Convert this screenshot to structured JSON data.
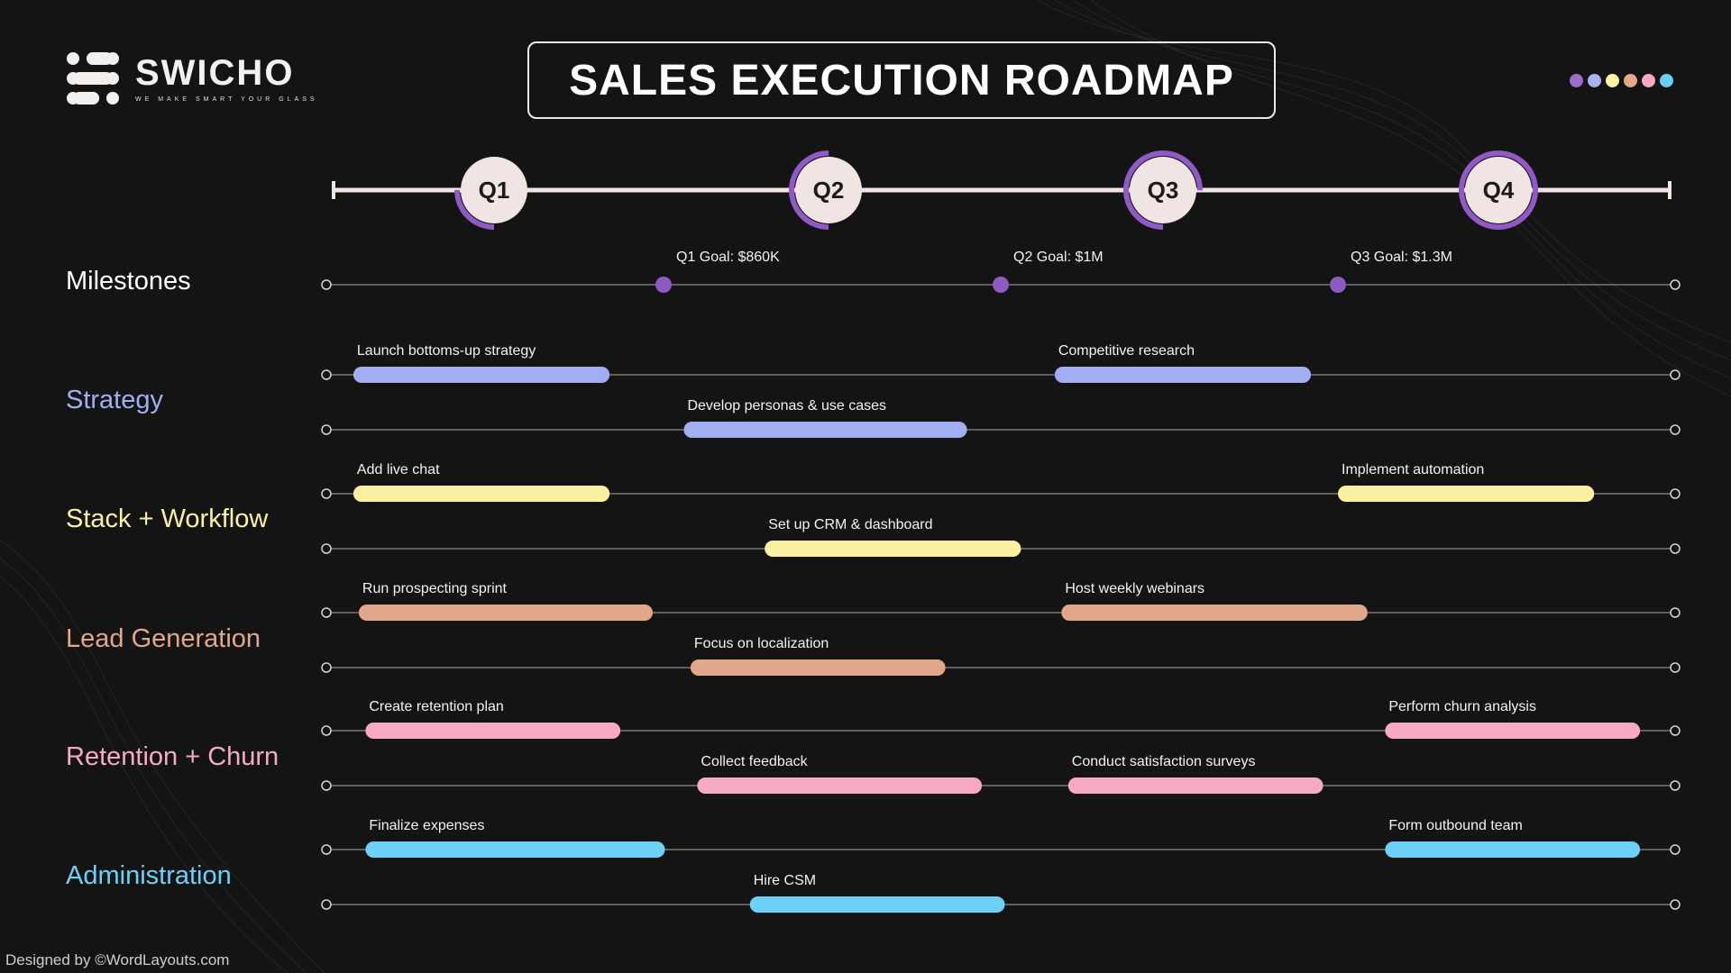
{
  "brand": {
    "name": "SWICHO",
    "tagline": "WE MAKE SMART YOUR GLASS"
  },
  "title": "SALES EXECUTION ROADMAP",
  "palette_dots": [
    "#9b6fd0",
    "#a9b3f0",
    "#fdf3a4",
    "#e3a88a",
    "#f7a7c2",
    "#69d0f5"
  ],
  "quarters": [
    {
      "label": "Q1",
      "progress": 0.25
    },
    {
      "label": "Q2",
      "progress": 0.5
    },
    {
      "label": "Q3",
      "progress": 0.75
    },
    {
      "label": "Q4",
      "progress": 1.0
    }
  ],
  "milestones": {
    "label": "Milestones",
    "items": [
      {
        "label": "Q1 Goal: $860K"
      },
      {
        "label": "Q2 Goal: $1M"
      },
      {
        "label": "Q3 Goal: $1.3M"
      }
    ]
  },
  "categories": [
    {
      "label": "Strategy",
      "color": "#a3adf2",
      "tracks": [
        [
          {
            "label": "Launch bottoms-up strategy",
            "start": 0.02,
            "end": 0.21
          },
          {
            "label": "Competitive research",
            "start": 0.54,
            "end": 0.73
          }
        ],
        [
          {
            "label": "Develop personas & use cases",
            "start": 0.265,
            "end": 0.475
          }
        ]
      ]
    },
    {
      "label": "Stack + Workflow",
      "color": "#fcf1a2",
      "tracks": [
        [
          {
            "label": "Add live chat",
            "start": 0.02,
            "end": 0.21
          },
          {
            "label": "Implement automation",
            "start": 0.75,
            "end": 0.94
          }
        ],
        [
          {
            "label": "Set up CRM & dashboard",
            "start": 0.325,
            "end": 0.515
          }
        ]
      ]
    },
    {
      "label": "Lead Generation",
      "color": "#e2a68a",
      "tracks": [
        [
          {
            "label": "Run prospecting sprint",
            "start": 0.024,
            "end": 0.242
          },
          {
            "label": "Host weekly webinars",
            "start": 0.545,
            "end": 0.772
          }
        ],
        [
          {
            "label": "Focus on localization",
            "start": 0.27,
            "end": 0.459
          }
        ]
      ]
    },
    {
      "label": "Retention + Churn",
      "color": "#f8a9c4",
      "tracks": [
        [
          {
            "label": "Create retention plan",
            "start": 0.029,
            "end": 0.218
          },
          {
            "label": "Perform churn analysis",
            "start": 0.785,
            "end": 0.974
          }
        ],
        [
          {
            "label": "Collect feedback",
            "start": 0.275,
            "end": 0.486
          },
          {
            "label": "Conduct satisfaction surveys",
            "start": 0.55,
            "end": 0.739
          }
        ]
      ]
    },
    {
      "label": "Administration",
      "color": "#6dd1f7",
      "tracks": [
        [
          {
            "label": "Finalize expenses",
            "start": 0.029,
            "end": 0.251
          },
          {
            "label": "Form outbound team",
            "start": 0.785,
            "end": 0.974
          }
        ],
        [
          {
            "label": "Hire CSM",
            "start": 0.314,
            "end": 0.503
          }
        ]
      ]
    }
  ],
  "footer": "Designed by ©WordLayouts.com"
}
